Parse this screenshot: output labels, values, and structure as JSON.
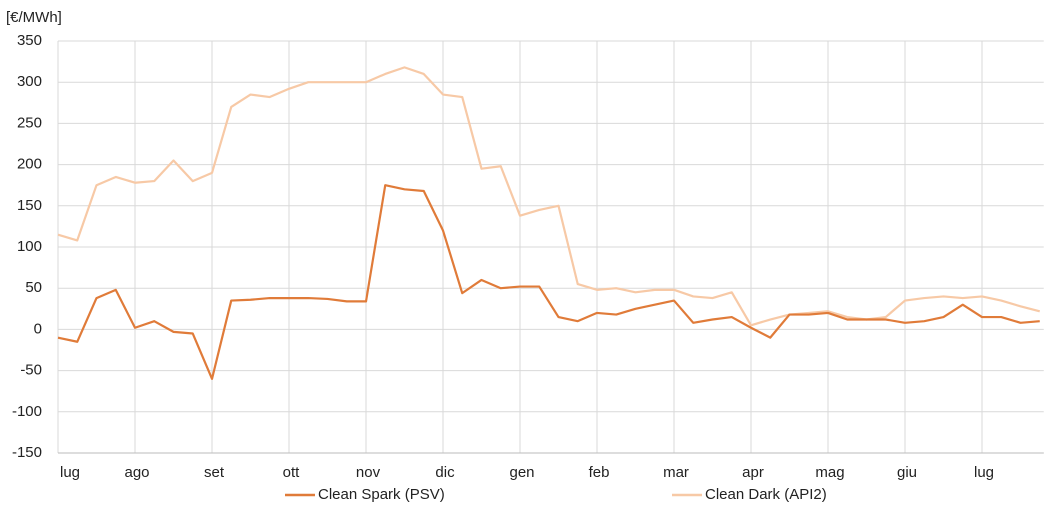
{
  "chart_data": {
    "type": "line",
    "y_label": "[€/MWh]",
    "categories": [
      "lug",
      null,
      null,
      null,
      "ago",
      null,
      null,
      null,
      "set",
      null,
      null,
      null,
      "ott",
      null,
      null,
      null,
      "nov",
      null,
      null,
      null,
      "dic",
      null,
      null,
      null,
      "gen",
      null,
      null,
      null,
      "feb",
      null,
      null,
      null,
      "mar",
      null,
      null,
      null,
      "apr",
      null,
      null,
      null,
      "mag",
      null,
      null,
      null,
      "giu",
      null,
      null,
      null,
      "lug",
      null,
      null,
      null
    ],
    "series": [
      {
        "name": "Clean Spark (PSV)",
        "color": "#e07b39",
        "values": [
          -10,
          -15,
          38,
          48,
          2,
          10,
          -3,
          -5,
          -60,
          35,
          36,
          38,
          38,
          38,
          37,
          34,
          34,
          175,
          170,
          168,
          120,
          44,
          60,
          50,
          52,
          52,
          15,
          10,
          20,
          18,
          25,
          30,
          35,
          8,
          12,
          15,
          2,
          -10,
          18,
          18,
          20,
          12,
          12,
          12,
          8,
          10,
          15,
          30,
          15,
          15,
          8,
          10
        ]
      },
      {
        "name": "Clean Dark (API2)",
        "color": "#f7c9a6",
        "values": [
          115,
          108,
          175,
          185,
          178,
          180,
          205,
          180,
          190,
          270,
          285,
          282,
          292,
          300,
          300,
          300,
          300,
          310,
          318,
          310,
          285,
          282,
          195,
          198,
          138,
          145,
          150,
          55,
          48,
          50,
          45,
          48,
          48,
          40,
          38,
          45,
          5,
          12,
          18,
          20,
          22,
          15,
          12,
          15,
          35,
          38,
          40,
          38,
          40,
          35,
          28,
          22
        ]
      }
    ],
    "ylim": [
      -150,
      350
    ],
    "yticks": [
      -150,
      -100,
      -50,
      0,
      50,
      100,
      150,
      200,
      250,
      300,
      350
    ],
    "grid": true,
    "legend": "bottom"
  }
}
